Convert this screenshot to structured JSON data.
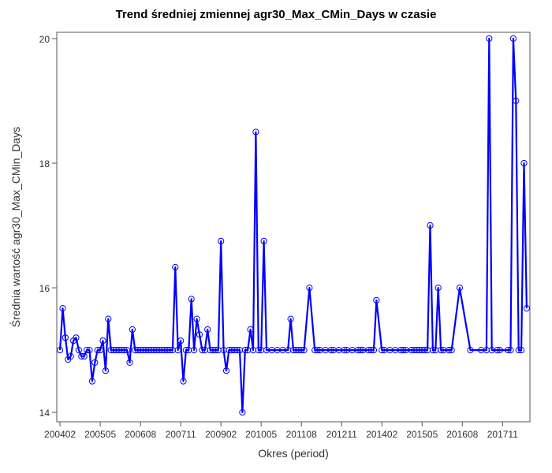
{
  "chart_data": {
    "type": "line",
    "title": "Trend średniej zmiennej agr30_Max_CMin_Days w czasie",
    "xlabel": "Okres (period)",
    "ylabel": "Średnia wartość agr30_Max_CMin_Days",
    "ylim": [
      13.85,
      20.1
    ],
    "yticks": [
      14,
      16,
      18,
      20
    ],
    "xticks": [
      "200402",
      "200505",
      "200608",
      "200711",
      "200902",
      "201005",
      "201108",
      "201211",
      "201402",
      "201505",
      "201608",
      "201711"
    ],
    "grid": false,
    "legend": "none",
    "series": [
      {
        "color": "#0000ff",
        "marker": "circle",
        "points": [
          [
            "200402",
            15.0
          ],
          [
            "200403",
            15.67
          ],
          [
            "200404",
            15.2
          ],
          [
            "200405",
            14.85
          ],
          [
            "200406",
            14.9
          ],
          [
            "200407",
            15.15
          ],
          [
            "200408",
            15.2
          ],
          [
            "200409",
            15.0
          ],
          [
            "200410",
            14.9
          ],
          [
            "200411",
            14.9
          ],
          [
            "200412",
            15.0
          ],
          [
            "200501",
            15.0
          ],
          [
            "200502",
            14.5
          ],
          [
            "200503",
            14.8
          ],
          [
            "200504",
            15.0
          ],
          [
            "200505",
            15.0
          ],
          [
            "200506",
            15.15
          ],
          [
            "200507",
            14.67
          ],
          [
            "200508",
            15.5
          ],
          [
            "200509",
            15.0
          ],
          [
            "200510",
            15.0
          ],
          [
            "200511",
            15.0
          ],
          [
            "200512",
            15.0
          ],
          [
            "200601",
            15.0
          ],
          [
            "200602",
            15.0
          ],
          [
            "200603",
            15.0
          ],
          [
            "200604",
            14.8
          ],
          [
            "200605",
            15.33
          ],
          [
            "200606",
            15.0
          ],
          [
            "200607",
            15.0
          ],
          [
            "200608",
            15.0
          ],
          [
            "200609",
            15.0
          ],
          [
            "200610",
            15.0
          ],
          [
            "200611",
            15.0
          ],
          [
            "200612",
            15.0
          ],
          [
            "200701",
            15.0
          ],
          [
            "200702",
            15.0
          ],
          [
            "200703",
            15.0
          ],
          [
            "200704",
            15.0
          ],
          [
            "200705",
            15.0
          ],
          [
            "200706",
            15.0
          ],
          [
            "200707",
            15.0
          ],
          [
            "200708",
            15.0
          ],
          [
            "200709",
            16.33
          ],
          [
            "200710",
            15.0
          ],
          [
            "200711",
            15.15
          ],
          [
            "200712",
            14.5
          ],
          [
            "200801",
            15.0
          ],
          [
            "200802",
            15.0
          ],
          [
            "200803",
            15.82
          ],
          [
            "200804",
            15.0
          ],
          [
            "200805",
            15.5
          ],
          [
            "200806",
            15.25
          ],
          [
            "200807",
            15.0
          ],
          [
            "200808",
            15.0
          ],
          [
            "200809",
            15.33
          ],
          [
            "200810",
            15.0
          ],
          [
            "200811",
            15.0
          ],
          [
            "200812",
            15.0
          ],
          [
            "200901",
            15.0
          ],
          [
            "200902",
            16.75
          ],
          [
            "200903",
            15.0
          ],
          [
            "200904",
            14.67
          ],
          [
            "200905",
            15.0
          ],
          [
            "200906",
            15.0
          ],
          [
            "200907",
            15.0
          ],
          [
            "200908",
            15.0
          ],
          [
            "200909",
            15.0
          ],
          [
            "200910",
            14.0
          ],
          [
            "200911",
            15.0
          ],
          [
            "200912",
            15.0
          ],
          [
            "201001",
            15.33
          ],
          [
            "201002",
            15.0
          ],
          [
            "201003",
            18.5
          ],
          [
            "201004",
            15.0
          ],
          [
            "201005",
            15.0
          ],
          [
            "201006",
            16.75
          ],
          [
            "201007",
            15.0
          ],
          [
            "201009",
            15.0
          ],
          [
            "201011",
            15.0
          ],
          [
            "201101",
            15.0
          ],
          [
            "201103",
            15.0
          ],
          [
            "201104",
            15.5
          ],
          [
            "201105",
            15.0
          ],
          [
            "201106",
            15.0
          ],
          [
            "201107",
            15.0
          ],
          [
            "201108",
            15.0
          ],
          [
            "201109",
            15.0
          ],
          [
            "201111",
            16.0
          ],
          [
            "201201",
            15.0
          ],
          [
            "201202",
            15.0
          ],
          [
            "201203",
            15.0
          ],
          [
            "201205",
            15.0
          ],
          [
            "201207",
            15.0
          ],
          [
            "201208",
            15.0
          ],
          [
            "201210",
            15.0
          ],
          [
            "201212",
            15.0
          ],
          [
            "201301",
            15.0
          ],
          [
            "201303",
            15.0
          ],
          [
            "201305",
            15.0
          ],
          [
            "201306",
            15.0
          ],
          [
            "201307",
            15.0
          ],
          [
            "201309",
            15.0
          ],
          [
            "201310",
            15.0
          ],
          [
            "201311",
            15.0
          ],
          [
            "201312",
            15.8
          ],
          [
            "201402",
            15.0
          ],
          [
            "201403",
            15.0
          ],
          [
            "201405",
            15.0
          ],
          [
            "201407",
            15.0
          ],
          [
            "201409",
            15.0
          ],
          [
            "201410",
            15.0
          ],
          [
            "201411",
            15.0
          ],
          [
            "201501",
            15.0
          ],
          [
            "201502",
            15.0
          ],
          [
            "201503",
            15.0
          ],
          [
            "201504",
            15.0
          ],
          [
            "201505",
            15.0
          ],
          [
            "201506",
            15.0
          ],
          [
            "201507",
            15.0
          ],
          [
            "201508",
            17.0
          ],
          [
            "201509",
            15.0
          ],
          [
            "201510",
            15.0
          ],
          [
            "201511",
            16.0
          ],
          [
            "201512",
            15.0
          ],
          [
            "201601",
            15.0
          ],
          [
            "201603",
            15.0
          ],
          [
            "201604",
            15.0
          ],
          [
            "201607",
            16.0
          ],
          [
            "201611",
            15.0
          ],
          [
            "201703",
            15.0
          ],
          [
            "201705",
            15.0
          ],
          [
            "201706",
            20.0
          ],
          [
            "201707",
            15.0
          ],
          [
            "201709",
            15.0
          ],
          [
            "201710",
            15.0
          ],
          [
            "201801",
            15.0
          ],
          [
            "201802",
            15.0
          ],
          [
            "201803",
            20.0
          ],
          [
            "201804",
            19.0
          ],
          [
            "201805",
            15.0
          ],
          [
            "201806",
            15.0
          ],
          [
            "201807",
            18.0
          ],
          [
            "201808",
            15.67
          ]
        ]
      }
    ]
  }
}
